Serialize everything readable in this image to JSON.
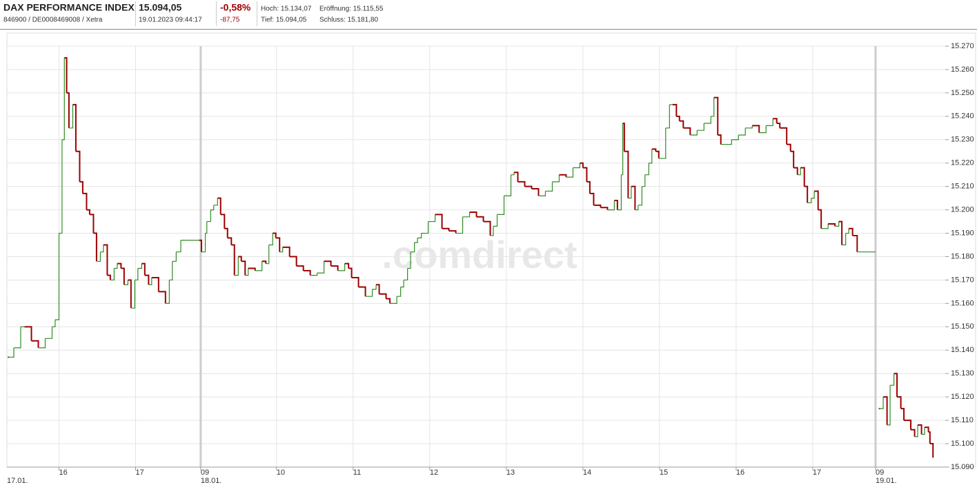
{
  "header": {
    "title": "DAX PERFORMANCE INDEX",
    "subtitle": "846900 / DE0008469008 / Xetra",
    "price": "15.094,05",
    "timestamp": "19.01.2023 09:44:17",
    "change_pct": "-0,58%",
    "change_abs": "-87,75",
    "high": "Hoch: 15.134,07",
    "open": "Eröffnung: 15.115,55",
    "low": "Tief: 15.094,05",
    "close": "Schluss: 15.181,80"
  },
  "chart_data": {
    "type": "line",
    "watermark": ".comdirect",
    "grid": true,
    "xlim": [
      0,
      12.25
    ],
    "ylim": [
      15090,
      15270
    ],
    "yticks": [
      {
        "value": 15090,
        "label": "15.090"
      },
      {
        "value": 15100,
        "label": "15.100"
      },
      {
        "value": 15110,
        "label": "15.110"
      },
      {
        "value": 15120,
        "label": "15.120"
      },
      {
        "value": 15130,
        "label": "15.130"
      },
      {
        "value": 15140,
        "label": "15.140"
      },
      {
        "value": 15150,
        "label": "15.150"
      },
      {
        "value": 15160,
        "label": "15.160"
      },
      {
        "value": 15170,
        "label": "15.170"
      },
      {
        "value": 15180,
        "label": "15.180"
      },
      {
        "value": 15190,
        "label": "15.190"
      },
      {
        "value": 15200,
        "label": "15.200"
      },
      {
        "value": 15210,
        "label": "15.210"
      },
      {
        "value": 15220,
        "label": "15.220"
      },
      {
        "value": 15230,
        "label": "15.230"
      },
      {
        "value": 15240,
        "label": "15.240"
      },
      {
        "value": 15250,
        "label": "15.250"
      },
      {
        "value": 15260,
        "label": "15.260"
      },
      {
        "value": 15270,
        "label": "15.270"
      }
    ],
    "xticks": [
      {
        "value": 0.68,
        "label": "16"
      },
      {
        "value": 1.68,
        "label": "17"
      },
      {
        "value": 2.53,
        "label": "09"
      },
      {
        "value": 3.52,
        "label": "10"
      },
      {
        "value": 4.52,
        "label": "11"
      },
      {
        "value": 5.52,
        "label": "12"
      },
      {
        "value": 6.52,
        "label": "13"
      },
      {
        "value": 7.52,
        "label": "14"
      },
      {
        "value": 8.52,
        "label": "15"
      },
      {
        "value": 9.52,
        "label": "16"
      },
      {
        "value": 10.52,
        "label": "17"
      },
      {
        "value": 11.34,
        "label": "09"
      }
    ],
    "date_ticks": [
      {
        "value": 0,
        "label": "17.01."
      },
      {
        "value": 2.53,
        "label": "18.01."
      },
      {
        "value": 11.34,
        "label": "19.01."
      }
    ],
    "up_color": "#2e8b22",
    "down_color": "#9b0000",
    "x": [
      0.02,
      0.09,
      0.18,
      0.23,
      0.32,
      0.41,
      0.5,
      0.59,
      0.63,
      0.68,
      0.72,
      0.75,
      0.78,
      0.81,
      0.86,
      0.9,
      0.95,
      0.99,
      1.04,
      1.08,
      1.13,
      1.17,
      1.22,
      1.26,
      1.31,
      1.35,
      1.4,
      1.44,
      1.49,
      1.53,
      1.58,
      1.62,
      1.67,
      1.71,
      1.76,
      1.8,
      1.85,
      1.89,
      1.98,
      2.07,
      2.12,
      2.16,
      2.21,
      2.27,
      2.51,
      2.54,
      2.59,
      2.61,
      2.66,
      2.7,
      2.75,
      2.79,
      2.84,
      2.88,
      2.93,
      2.97,
      3.02,
      3.06,
      3.11,
      3.15,
      3.24,
      3.33,
      3.38,
      3.42,
      3.47,
      3.51,
      3.56,
      3.6,
      3.69,
      3.78,
      3.87,
      3.96,
      4.05,
      4.14,
      4.23,
      4.32,
      4.41,
      4.46,
      4.5,
      4.59,
      4.68,
      4.77,
      4.82,
      4.86,
      4.95,
      5,
      5.05,
      5.09,
      5.14,
      5.18,
      5.23,
      5.27,
      5.32,
      5.36,
      5.41,
      5.5,
      5.59,
      5.68,
      5.77,
      5.86,
      5.95,
      6.04,
      6.13,
      6.22,
      6.31,
      6.35,
      6.4,
      6.49,
      6.58,
      6.62,
      6.67,
      6.76,
      6.85,
      6.94,
      7.03,
      7.12,
      7.21,
      7.3,
      7.39,
      7.48,
      7.52,
      7.57,
      7.61,
      7.66,
      7.75,
      7.84,
      7.93,
      7.97,
      8.02,
      8.04,
      8.06,
      8.11,
      8.15,
      8.2,
      8.24,
      8.29,
      8.33,
      8.38,
      8.42,
      8.47,
      8.51,
      8.56,
      8.6,
      8.65,
      8.69,
      8.74,
      8.78,
      8.83,
      8.92,
      9.01,
      9.1,
      9.19,
      9.23,
      9.28,
      9.32,
      9.37,
      9.46,
      9.55,
      9.64,
      9.73,
      9.82,
      9.91,
      10,
      10.05,
      10.09,
      10.18,
      10.23,
      10.27,
      10.32,
      10.36,
      10.41,
      10.45,
      10.5,
      10.54,
      10.59,
      10.63,
      10.72,
      10.81,
      10.86,
      10.9,
      10.95,
      10.99,
      11.04,
      11.1,
      11.34,
      11.36,
      11.39,
      11.44,
      11.49,
      11.53,
      11.58,
      11.62,
      11.67,
      11.71,
      11.8,
      11.85,
      11.89,
      11.94,
      11.98,
      12.03,
      12.05,
      12.09
    ],
    "values": [
      15137,
      15141,
      15150,
      15150,
      15144,
      15141,
      15145,
      15150,
      15153,
      15190,
      15230,
      15265,
      15250,
      15235,
      15245,
      15225,
      15212,
      15207,
      15200,
      15198,
      15190,
      15178,
      15182,
      15185,
      15172,
      15170,
      15175,
      15177,
      15175,
      15168,
      15170,
      15158,
      15170,
      15175,
      15177,
      15172,
      15168,
      15171,
      15165,
      15160,
      15170,
      15178,
      15182,
      15187,
      15187,
      15182,
      15190,
      15195,
      15200,
      15202,
      15205,
      15198,
      15192,
      15188,
      15185,
      15172,
      15180,
      15178,
      15172,
      15175,
      15174,
      15178,
      15177,
      15185,
      15190,
      15188,
      15182,
      15184,
      15180,
      15176,
      15174,
      15172,
      15173,
      15178,
      15176,
      15174,
      15177,
      15175,
      15171,
      15167,
      15163,
      15166,
      15168,
      15164,
      15162,
      15160,
      15160,
      15163,
      15167,
      15170,
      15175,
      15182,
      15186,
      15188,
      15190,
      15195,
      15198,
      15192,
      15191,
      15190,
      15197,
      15199,
      15197,
      15195,
      15189,
      15193,
      15198,
      15206,
      15215,
      15216,
      15212,
      15210,
      15209,
      15206,
      15208,
      15212,
      15215,
      15214,
      15218,
      15220,
      15218,
      15212,
      15207,
      15202,
      15201,
      15200,
      15204,
      15200,
      15215,
      15237,
      15225,
      15205,
      15210,
      15200,
      15202,
      15210,
      15215,
      15220,
      15226,
      15225,
      15222,
      15222,
      15235,
      15245,
      15245,
      15240,
      15238,
      15235,
      15232,
      15234,
      15237,
      15240,
      15248,
      15232,
      15228,
      15228,
      15230,
      15232,
      15235,
      15236,
      15233,
      15236,
      15239,
      15237,
      15235,
      15228,
      15225,
      15218,
      15215,
      15218,
      15210,
      15203,
      15205,
      15208,
      15200,
      15192,
      15194,
      15193,
      15195,
      15185,
      15190,
      15192,
      15189,
      15182,
      15182,
      null,
      15115,
      15120,
      15108,
      15125,
      15130,
      15120,
      15115,
      15110,
      15106,
      15103,
      15108,
      15104,
      15107,
      15105,
      15100,
      15094
    ]
  }
}
